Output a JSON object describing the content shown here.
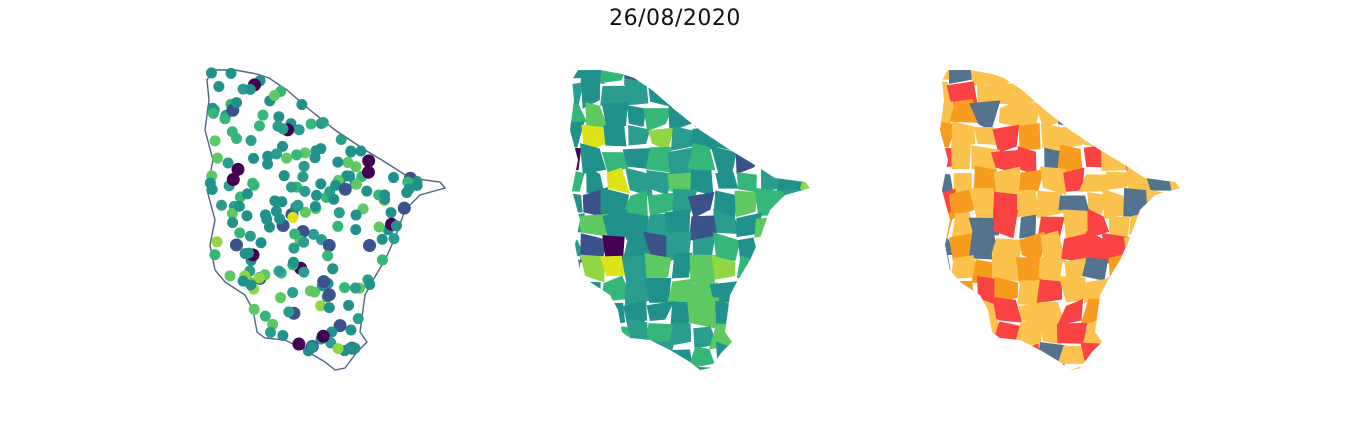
{
  "figure": {
    "title": "26/08/2020"
  },
  "maps": [
    {
      "name": "station-points-map",
      "kind": "points",
      "outline_color": "#4d6580"
    },
    {
      "name": "municipality-choropleth-continuous",
      "kind": "choropleth",
      "palette": [
        "#440154",
        "#3b528b",
        "#21918c",
        "#2a9d8f",
        "#35b779",
        "#5ec962",
        "#90d743",
        "#dde318"
      ]
    },
    {
      "name": "municipality-choropleth-categorical",
      "kind": "choropleth",
      "palette": [
        "#fbc34e",
        "#f89c20",
        "#fb4344",
        "#54738f"
      ]
    }
  ],
  "colors": {
    "viridis": [
      "#440154",
      "#3b528b",
      "#21918c",
      "#2a9d8f",
      "#35b779",
      "#5ec962",
      "#90d743",
      "#dde318"
    ],
    "categorical": [
      "#fbc34e",
      "#f89c20",
      "#fb4344",
      "#54738f"
    ]
  }
}
